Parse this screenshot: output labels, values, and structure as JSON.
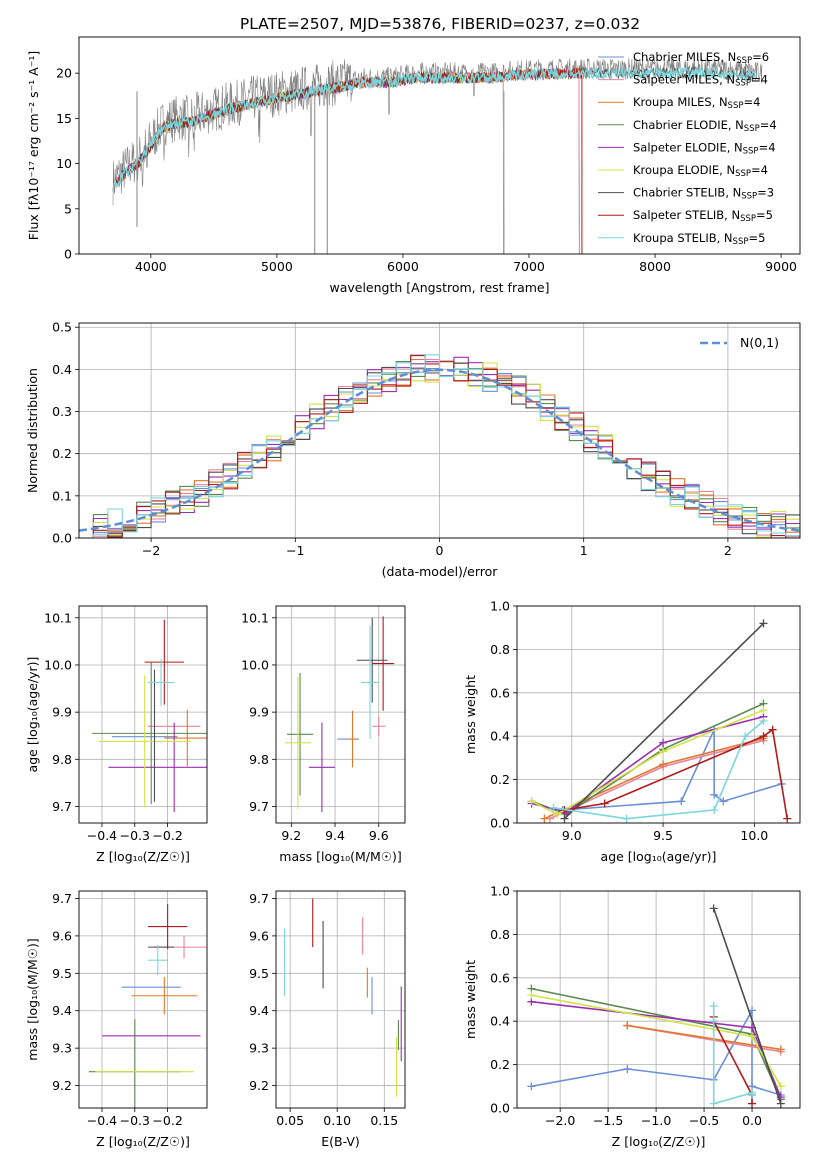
{
  "title": "PLATE=2507, MJD=53876, FIBERID=0237, z=0.032",
  "colors": {
    "Chabrier MILES": "#6b8fd6",
    "Salpeter MILES": "#e8849c",
    "Kroupa MILES": "#e0782f",
    "Chabrier ELODIE": "#5a8a4e",
    "Salpeter ELODIE": "#9a2fb0",
    "Kroupa ELODIE": "#d4e24a",
    "Chabrier STELIB": "#4d4d4d",
    "Salpeter STELIB": "#b01a1a",
    "Kroupa STELIB": "#7ad6dc",
    "gauss": "#5b8fd6"
  },
  "chart_data": [
    {
      "id": "spectrum",
      "type": "line",
      "xlabel": "wavelength [Angstrom, rest frame]",
      "ylabel": "Flux [fλ10⁻¹⁷ erg cm⁻² s⁻¹ A⁻¹]",
      "xlim": [
        3430,
        9150
      ],
      "ylim": [
        0,
        24
      ],
      "xticks": [
        4000,
        5000,
        6000,
        7000,
        8000,
        9000
      ],
      "yticks": [
        0,
        5,
        10,
        15,
        20
      ],
      "legend": [
        "Chabrier MILES, N_SSP=6",
        "Salpeter MILES, N_SSP=4",
        "Kroupa MILES, N_SSP=4",
        "Chabrier ELODIE, N_SSP=4",
        "Salpeter ELODIE, N_SSP=4",
        "Kroupa ELODIE, N_SSP=4",
        "Chabrier STELIB, N_SSP=3",
        "Salpeter STELIB, N_SSP=5",
        "Kroupa STELIB, N_SSP=5"
      ],
      "legend_position": "upper right",
      "continuum": {
        "x": [
          3700,
          3800,
          3900,
          4000,
          4100,
          4200,
          4300,
          4500,
          4700,
          4900,
          5100,
          5300,
          5500,
          5700,
          5900,
          6100,
          6300,
          6500,
          6700,
          6900,
          7100,
          7300,
          7500,
          7700,
          7900,
          8100,
          8300,
          8500,
          8700,
          8850
        ],
        "y": [
          8,
          9.5,
          10.5,
          12.5,
          14.5,
          15,
          15,
          16,
          16.8,
          17.5,
          18,
          18.5,
          19,
          19.5,
          19.5,
          20,
          20,
          20,
          20,
          20.3,
          20.4,
          20.5,
          20.5,
          20.5,
          20.5,
          20.5,
          20.5,
          20.5,
          20.3,
          20
        ]
      },
      "model_ranges": {
        "Chabrier MILES": [
          3700,
          7400
        ],
        "Salpeter MILES": [
          3700,
          7400
        ],
        "Kroupa MILES": [
          3700,
          7420
        ],
        "Chabrier ELODIE": [
          3700,
          6800
        ],
        "Salpeter ELODIE": [
          3700,
          6800
        ],
        "Kroupa ELODIE": [
          3700,
          6800
        ],
        "Chabrier STELIB": [
          3700,
          8800
        ],
        "Salpeter STELIB": [
          3700,
          7420
        ],
        "Kroupa STELIB": [
          3700,
          8800
        ]
      }
    },
    {
      "id": "residual_hist",
      "type": "line",
      "xlabel": "(data-model)/error",
      "ylabel": "Normed distribution",
      "xlim": [
        -2.5,
        2.5
      ],
      "ylim": [
        0,
        0.51
      ],
      "xticks": [
        -2,
        -1,
        0,
        1,
        2
      ],
      "yticks": [
        0.0,
        0.1,
        0.2,
        0.3,
        0.4,
        0.5
      ],
      "gaussian_label": "N(0,1)",
      "legend_position": "upper right",
      "bin_width": 0.1
    },
    {
      "id": "age_vs_Z",
      "type": "scatter",
      "xlabel": "Z [log₁₀(Z/Z☉)]",
      "ylabel": "age  [log₁₀(age/yr)]",
      "xlim": [
        -0.47,
        -0.08
      ],
      "ylim": [
        9.665,
        10.125
      ],
      "xticks": [
        -0.4,
        -0.3,
        -0.2
      ],
      "yticks": [
        9.7,
        9.8,
        9.9,
        10.0,
        10.1
      ],
      "points": [
        {
          "model": "Chabrier MILES",
          "x": -0.27,
          "xerr": 0.1,
          "y": 9.848,
          "yerr": 0.0
        },
        {
          "model": "Salpeter MILES",
          "x": -0.18,
          "xerr": 0.08,
          "y": 9.87,
          "yerr": 0.0
        },
        {
          "model": "Kroupa MILES",
          "x": -0.14,
          "xerr": 0.07,
          "y": 9.845,
          "yerr": 0.06
        },
        {
          "model": "Chabrier ELODIE",
          "x": -0.25,
          "xerr": 0.18,
          "y": 9.855,
          "yerr": 0.15
        },
        {
          "model": "Salpeter ELODIE",
          "x": -0.18,
          "xerr": 0.2,
          "y": 9.783,
          "yerr": 0.095
        },
        {
          "model": "Kroupa ELODIE",
          "x": -0.27,
          "xerr": 0.14,
          "y": 9.838,
          "yerr": 0.14
        },
        {
          "model": "Chabrier STELIB",
          "x": -0.24,
          "xerr": 0.0,
          "y": 9.85,
          "yerr": 0.14
        },
        {
          "model": "Salpeter STELIB",
          "x": -0.21,
          "xerr": 0.06,
          "y": 10.006,
          "yerr": 0.09
        },
        {
          "model": "Kroupa STELIB",
          "x": -0.22,
          "xerr": 0.04,
          "y": 9.963,
          "yerr": 0.05
        }
      ]
    },
    {
      "id": "age_vs_mass",
      "type": "scatter",
      "xlabel": "mass [log₁₀(M/M☉)]",
      "ylabel": "",
      "xlim": [
        9.13,
        9.72
      ],
      "ylim": [
        9.665,
        10.125
      ],
      "xticks": [
        9.2,
        9.4,
        9.6
      ],
      "yticks": [
        9.7,
        9.8,
        9.9,
        10.0,
        10.1
      ],
      "points": [
        {
          "model": "Chabrier MILES",
          "x": 9.46,
          "xerr": 0.05,
          "y": 9.843,
          "yerr": 0.0
        },
        {
          "model": "Salpeter MILES",
          "x": 9.6,
          "xerr": 0.03,
          "y": 9.87,
          "yerr": 0.02
        },
        {
          "model": "Kroupa MILES",
          "x": 9.48,
          "xerr": 0.02,
          "y": 9.843,
          "yerr": 0.06
        },
        {
          "model": "Chabrier ELODIE",
          "x": 9.24,
          "xerr": 0.06,
          "y": 9.853,
          "yerr": 0.13
        },
        {
          "model": "Salpeter ELODIE",
          "x": 9.34,
          "xerr": 0.06,
          "y": 9.783,
          "yerr": 0.095
        },
        {
          "model": "Kroupa ELODIE",
          "x": 9.23,
          "xerr": 0.06,
          "y": 9.835,
          "yerr": 0.14
        },
        {
          "model": "Chabrier STELIB",
          "x": 9.57,
          "xerr": 0.07,
          "y": 10.01,
          "yerr": 0.09
        },
        {
          "model": "Salpeter STELIB",
          "x": 9.62,
          "xerr": 0.05,
          "y": 10.003,
          "yerr": 0.1
        },
        {
          "model": "Kroupa STELIB",
          "x": 9.56,
          "xerr": 0.04,
          "y": 9.963,
          "yerr": 0.12
        }
      ]
    },
    {
      "id": "weight_vs_age",
      "type": "line",
      "xlabel": "age  [log₁₀(age/yr)]",
      "ylabel": "mass weight",
      "xlim": [
        8.7,
        10.25
      ],
      "ylim": [
        0,
        1
      ],
      "xticks": [
        9.0,
        9.5,
        10.0
      ],
      "yticks": [
        0.0,
        0.2,
        0.4,
        0.6,
        0.8,
        1.0
      ],
      "series": [
        {
          "model": "Chabrier MILES",
          "x": [
            8.95,
            9.6,
            9.78,
            9.78,
            9.83,
            10.15
          ],
          "y": [
            0.06,
            0.1,
            0.43,
            0.13,
            0.1,
            0.18
          ]
        },
        {
          "model": "Salpeter MILES",
          "x": [
            8.88,
            9.5,
            10.05
          ],
          "y": [
            0.02,
            0.26,
            0.38
          ]
        },
        {
          "model": "Kroupa MILES",
          "x": [
            8.85,
            9.5,
            10.05
          ],
          "y": [
            0.02,
            0.27,
            0.39
          ]
        },
        {
          "model": "Chabrier ELODIE",
          "x": [
            8.78,
            8.97,
            9.5,
            10.05
          ],
          "y": [
            0.1,
            0.04,
            0.34,
            0.55
          ]
        },
        {
          "model": "Salpeter ELODIE",
          "x": [
            8.78,
            8.97,
            9.5,
            10.05
          ],
          "y": [
            0.09,
            0.05,
            0.37,
            0.49
          ]
        },
        {
          "model": "Kroupa ELODIE",
          "x": [
            8.78,
            8.92,
            9.5,
            10.05
          ],
          "y": [
            0.1,
            0.04,
            0.33,
            0.52
          ]
        },
        {
          "model": "Chabrier STELIB",
          "x": [
            8.96,
            10.05
          ],
          "y": [
            0.02,
            0.92
          ]
        },
        {
          "model": "Salpeter STELIB",
          "x": [
            8.96,
            9.18,
            10.05,
            10.1,
            10.18
          ],
          "y": [
            0.06,
            0.09,
            0.4,
            0.43,
            0.02
          ]
        },
        {
          "model": "Kroupa STELIB",
          "x": [
            8.9,
            9.3,
            9.78,
            9.95,
            10.05
          ],
          "y": [
            0.07,
            0.02,
            0.06,
            0.4,
            0.47
          ]
        }
      ]
    },
    {
      "id": "mass_vs_Z",
      "type": "scatter",
      "xlabel": "Z [log₁₀(Z/Z☉)]",
      "ylabel": "mass [log₁₀(M/M☉)]",
      "xlim": [
        -0.47,
        -0.08
      ],
      "ylim": [
        9.14,
        9.72
      ],
      "xticks": [
        -0.4,
        -0.3,
        -0.2
      ],
      "yticks": [
        9.2,
        9.3,
        9.4,
        9.5,
        9.6,
        9.7
      ],
      "points": [
        {
          "model": "Chabrier MILES",
          "x": -0.25,
          "xerr": 0.09,
          "y": 9.463,
          "yerr": 0.0
        },
        {
          "model": "Salpeter MILES",
          "x": -0.15,
          "xerr": 0.09,
          "y": 9.57,
          "yerr": 0.03
        },
        {
          "model": "Kroupa MILES",
          "x": -0.21,
          "xerr": 0.1,
          "y": 9.44,
          "yerr": 0.05
        },
        {
          "model": "Chabrier ELODIE",
          "x": -0.3,
          "xerr": 0.14,
          "y": 9.237,
          "yerr": 0.14
        },
        {
          "model": "Salpeter ELODIE",
          "x": -0.25,
          "xerr": 0.15,
          "y": 9.333,
          "yerr": 0.0
        },
        {
          "model": "Kroupa ELODIE",
          "x": -0.27,
          "xerr": 0.15,
          "y": 9.237,
          "yerr": 0.0
        },
        {
          "model": "Chabrier STELIB",
          "x": -0.22,
          "xerr": 0.04,
          "y": 9.57,
          "yerr": 0.0
        },
        {
          "model": "Salpeter STELIB",
          "x": -0.2,
          "xerr": 0.06,
          "y": 9.625,
          "yerr": 0.06
        },
        {
          "model": "Kroupa STELIB",
          "x": -0.23,
          "xerr": 0.03,
          "y": 9.535,
          "yerr": 0.04
        }
      ]
    },
    {
      "id": "mass_vs_EBV",
      "type": "scatter",
      "xlabel": "E(B-V)",
      "ylabel": "",
      "xlim": [
        0.035,
        0.172
      ],
      "ylim": [
        9.14,
        9.72
      ],
      "xticks": [
        0.05,
        0.1,
        0.15
      ],
      "yticks": [
        9.2,
        9.3,
        9.4,
        9.5,
        9.6,
        9.7
      ],
      "points": [
        {
          "model": "Chabrier MILES",
          "x": 0.137,
          "y": 9.44,
          "yerr": 0.05
        },
        {
          "model": "Salpeter MILES",
          "x": 0.127,
          "y": 9.6,
          "yerr": 0.05
        },
        {
          "model": "Kroupa MILES",
          "x": 0.132,
          "y": 9.475,
          "yerr": 0.04
        },
        {
          "model": "Chabrier ELODIE",
          "x": 0.165,
          "y": 9.335,
          "yerr": 0.04
        },
        {
          "model": "Salpeter ELODIE",
          "x": 0.168,
          "y": 9.365,
          "yerr": 0.1
        },
        {
          "model": "Kroupa ELODIE",
          "x": 0.163,
          "y": 9.25,
          "yerr": 0.08
        },
        {
          "model": "Chabrier STELIB",
          "x": 0.085,
          "y": 9.55,
          "yerr": 0.09
        },
        {
          "model": "Salpeter STELIB",
          "x": 0.074,
          "y": 9.635,
          "yerr": 0.065
        },
        {
          "model": "Kroupa STELIB",
          "x": 0.044,
          "y": 9.53,
          "yerr": 0.09
        }
      ]
    },
    {
      "id": "weight_vs_Z",
      "type": "line",
      "xlabel": "Z [log₁₀(Z/Z☉)]",
      "ylabel": "mass weight",
      "xlim": [
        -2.45,
        0.5
      ],
      "ylim": [
        0,
        1
      ],
      "xticks": [
        -2.0,
        -1.5,
        -1.0,
        -0.5,
        0.0
      ],
      "yticks": [
        0.0,
        0.2,
        0.4,
        0.6,
        0.8,
        1.0
      ],
      "series": [
        {
          "model": "Chabrier MILES",
          "x": [
            -2.3,
            -1.3,
            -0.4,
            0.0,
            0.0,
            0.3
          ],
          "y": [
            0.1,
            0.18,
            0.13,
            0.45,
            0.1,
            0.06
          ]
        },
        {
          "model": "Salpeter MILES",
          "x": [
            -1.3,
            0.3
          ],
          "y": [
            0.38,
            0.26
          ]
        },
        {
          "model": "Kroupa MILES",
          "x": [
            -1.3,
            0.3
          ],
          "y": [
            0.38,
            0.27
          ]
        },
        {
          "model": "Chabrier ELODIE",
          "x": [
            -2.3,
            0.0,
            0.3
          ],
          "y": [
            0.55,
            0.34,
            0.04
          ]
        },
        {
          "model": "Salpeter ELODIE",
          "x": [
            -2.3,
            0.0,
            0.3
          ],
          "y": [
            0.49,
            0.37,
            0.05
          ]
        },
        {
          "model": "Kroupa ELODIE",
          "x": [
            -2.3,
            0.0,
            0.3
          ],
          "y": [
            0.52,
            0.33,
            0.1
          ]
        },
        {
          "model": "Chabrier STELIB",
          "x": [
            -0.4,
            0.3
          ],
          "y": [
            0.92,
            0.02
          ]
        },
        {
          "model": "Salpeter STELIB",
          "x": [
            -0.4,
            -0.4,
            0.0,
            0.0
          ],
          "y": [
            0.42,
            0.4,
            0.06,
            0.02
          ]
        },
        {
          "model": "Kroupa STELIB",
          "x": [
            -0.4,
            -0.4,
            -0.4,
            0.0,
            0.0
          ],
          "y": [
            0.47,
            0.4,
            0.02,
            0.07,
            0.06
          ]
        }
      ]
    }
  ]
}
